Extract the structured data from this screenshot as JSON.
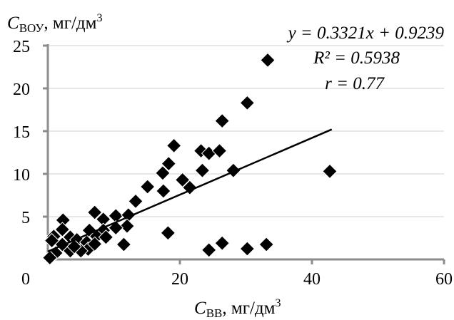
{
  "chart_data": {
    "type": "scatter",
    "ylabel": {
      "main": "C",
      "sub": "ВОУ",
      "unit": ", мг/дм",
      "sup": "3"
    },
    "xlabel": {
      "main": "C",
      "sub": "ВВ",
      "unit": ", мг/дм",
      "sup": "3"
    },
    "xlim": [
      0,
      60
    ],
    "ylim": [
      0,
      25
    ],
    "xticks": [
      "0",
      "20",
      "40",
      "60"
    ],
    "yticks": [
      "5",
      "10",
      "15",
      "20",
      "25"
    ],
    "grid": "horizontal",
    "marker": "diamond",
    "marker_color": "#000000",
    "annotations": {
      "equation": "y = 0.3321x + 0.9239",
      "r2": "R² = 0.5938",
      "r": "r = 0.77"
    },
    "trendline": {
      "slope": 0.3321,
      "intercept": 0.9239,
      "x_range": [
        0,
        43
      ]
    },
    "points": [
      [
        33.3,
        23.3
      ],
      [
        30.2,
        18.3
      ],
      [
        26.4,
        16.2
      ],
      [
        19.1,
        13.3
      ],
      [
        18.3,
        11.2
      ],
      [
        17.4,
        10.1
      ],
      [
        17.5,
        8.0
      ],
      [
        15.1,
        8.5
      ],
      [
        13.3,
        6.8
      ],
      [
        20.4,
        9.3
      ],
      [
        21.5,
        8.4
      ],
      [
        23.2,
        12.7
      ],
      [
        24.4,
        12.4
      ],
      [
        26.0,
        12.7
      ],
      [
        23.4,
        10.4
      ],
      [
        28.1,
        10.4
      ],
      [
        42.7,
        10.3
      ],
      [
        18.2,
        3.1
      ],
      [
        11.5,
        1.75
      ],
      [
        24.4,
        1.1
      ],
      [
        26.4,
        1.9
      ],
      [
        30.2,
        1.25
      ],
      [
        33.1,
        1.75
      ],
      [
        7.1,
        5.5
      ],
      [
        2.3,
        4.6
      ],
      [
        8.4,
        4.7
      ],
      [
        10.3,
        5.1
      ],
      [
        12.2,
        5.2
      ],
      [
        12.0,
        3.9
      ],
      [
        0.9,
        2.7
      ],
      [
        2.2,
        3.5
      ],
      [
        3.4,
        2.6
      ],
      [
        4.4,
        2.3
      ],
      [
        5.9,
        2.0
      ],
      [
        6.3,
        3.4
      ],
      [
        8.4,
        3.4
      ],
      [
        7.4,
        2.7
      ],
      [
        8.8,
        2.6
      ],
      [
        10.3,
        3.7
      ],
      [
        2.2,
        1.75
      ],
      [
        1.2,
        0.75
      ],
      [
        0.3,
        0.2
      ],
      [
        3.4,
        1.0
      ],
      [
        6.1,
        1.2
      ],
      [
        7.1,
        1.8
      ],
      [
        5.0,
        1.0
      ],
      [
        0.6,
        2.2
      ],
      [
        4.0,
        1.5
      ]
    ]
  }
}
